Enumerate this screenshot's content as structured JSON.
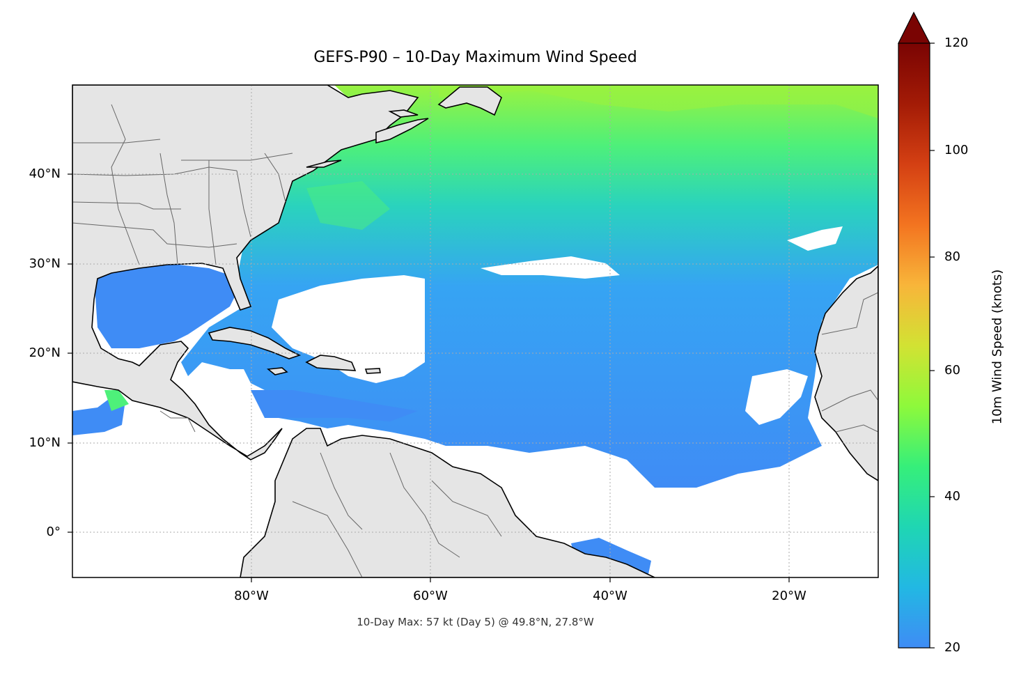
{
  "map": {
    "title": "GEFS-P90 – 10-Day Maximum Wind Speed",
    "footer": "10-Day Max: 57 kt (Day 5) @ 49.8°N, 27.8°W",
    "extent": {
      "lon_min": -100,
      "lon_max": -10,
      "lat_min": -5,
      "lat_max": 50
    },
    "lat_ticks": [
      "40°N",
      "30°N",
      "20°N",
      "10°N",
      "0°"
    ],
    "lon_ticks": [
      "80°W",
      "60°W",
      "40°W",
      "20°W"
    ],
    "land_color": "#e5e5e5",
    "coast_color": "#000000",
    "border_color": "#666666"
  },
  "colorbar": {
    "label": "10m Wind Speed (knots)",
    "ticks": [
      "120",
      "100",
      "80",
      "60",
      "40",
      "20"
    ],
    "min": 20,
    "max": 120,
    "extend": "max",
    "colors": [
      "#3f8cf5",
      "#22b8e3",
      "#1fd6b3",
      "#36ef7a",
      "#8ef93b",
      "#d2e233",
      "#f8b53a",
      "#f37420",
      "#d44013",
      "#a31b06",
      "#7a0403"
    ]
  }
}
